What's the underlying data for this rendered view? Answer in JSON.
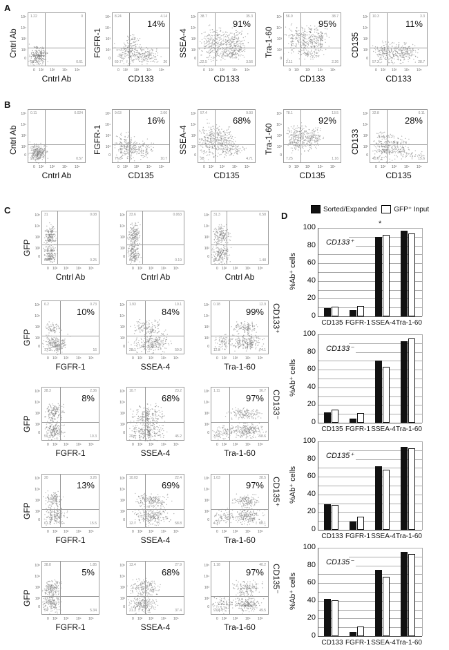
{
  "panels": {
    "A": "A",
    "B": "B",
    "C": "C",
    "D": "D"
  },
  "facs_axis_ticks": {
    "x": [
      "0",
      "10²",
      "10³",
      "10⁴",
      "10⁵"
    ],
    "y": [
      "10⁵",
      "10⁴",
      "10³",
      "10²",
      "0"
    ]
  },
  "panelA": [
    {
      "ylabel": "Cntrl Ab",
      "xlabel": "Cntrl Ab",
      "pct": "",
      "ul": "1.22",
      "ur": "0",
      "ll": "98.2",
      "lr": "0.61"
    },
    {
      "ylabel": "FGFR-1",
      "xlabel": "CD133",
      "pct": "14%",
      "ul": "8.24",
      "ur": "4.14",
      "ll": "60.7",
      "lr": "26"
    },
    {
      "ylabel": "SSEA-4",
      "xlabel": "CD133",
      "pct": "91%",
      "ul": "38.7",
      "ur": "35.3",
      "ll": "22.5",
      "lr": "3.56"
    },
    {
      "ylabel": "Tra-1-60",
      "xlabel": "CD133",
      "pct": "95%",
      "ul": "56.9",
      "ur": "38.7",
      "ll": "2.11",
      "lr": "2.26"
    },
    {
      "ylabel": "CD135",
      "xlabel": "CD133",
      "pct": "11%",
      "ul": "10.3",
      "ur": "3.3",
      "ll": "57.2",
      "lr": "28.7"
    }
  ],
  "panelB": [
    {
      "ylabel": "Cntrl Ab",
      "xlabel": "Cntrl Ab",
      "pct": "",
      "ul": "0.11",
      "ur": "0.024",
      "ll": "99.3",
      "lr": "0.57"
    },
    {
      "ylabel": "FGFR-1",
      "xlabel": "CD135",
      "pct": "16%",
      "ul": "9.63",
      "ur": "2.06",
      "ll": "77.6",
      "lr": "10.7"
    },
    {
      "ylabel": "SSEA-4",
      "xlabel": "CD135",
      "pct": "68%",
      "ul": "57.4",
      "ur": "9.93",
      "ll": "28",
      "lr": "4.71"
    },
    {
      "ylabel": "Tra-1-60",
      "xlabel": "CD135",
      "pct": "92%",
      "ul": "78.1",
      "ur": "13.5",
      "ll": "7.25",
      "lr": "1.16"
    },
    {
      "ylabel": "CD133",
      "xlabel": "CD135",
      "pct": "28%",
      "ul": "32.8",
      "ur": "6.11",
      "ll": "45.6",
      "lr": "15.6"
    }
  ],
  "panelC": {
    "ylabel": "GFP",
    "rows": [
      {
        "label": "",
        "plots": [
          {
            "xlabel": "Cntrl Ab",
            "pct": "",
            "ul": "31",
            "ur": "0.08",
            "ll": "68.7",
            "lr": "0.25"
          },
          {
            "xlabel": "Cntrl Ab",
            "pct": "",
            "ul": "33.6",
            "ur": "0.063",
            "ll": "66.1",
            "lr": "0.19"
          },
          {
            "xlabel": "Cntrl Ab",
            "pct": "",
            "ul": "31.3",
            "ur": "0.58",
            "ll": "66.6",
            "lr": "1.48"
          }
        ]
      },
      {
        "label": "CD133⁺",
        "plots": [
          {
            "xlabel": "FGFR-1",
            "pct": "10%",
            "ul": "6.2",
            "ur": "0.73",
            "ll": "77.1",
            "lr": "16"
          },
          {
            "xlabel": "SSEA-4",
            "pct": "84%",
            "ul": "1.93",
            "ur": "10.1",
            "ll": "28.1",
            "lr": "59.9"
          },
          {
            "xlabel": "Tra-1-60",
            "pct": "99%",
            "ul": "0.18",
            "ur": "12.9",
            "ll": "12.8",
            "lr": "74.1"
          }
        ]
      },
      {
        "label": "CD133⁻",
        "plots": [
          {
            "xlabel": "FGFR-1",
            "pct": "8%",
            "ul": "28.3",
            "ur": "2.36",
            "ll": "59",
            "lr": "10.3"
          },
          {
            "xlabel": "SSEA-4",
            "pct": "68%",
            "ul": "10.7",
            "ur": "23.2",
            "ll": "20",
            "lr": "45.2"
          },
          {
            "xlabel": "Tra-1-60",
            "pct": "97%",
            "ul": "1.11",
            "ur": "36.7",
            "ll": "3.54",
            "lr": "58.6"
          }
        ]
      },
      {
        "label": "CD135⁺",
        "plots": [
          {
            "xlabel": "FGFR-1",
            "pct": "13%",
            "ul": "20",
            "ur": "3.26",
            "ll": "61.2",
            "lr": "15.5"
          },
          {
            "xlabel": "SSEA-4",
            "pct": "69%",
            "ul": "10.03",
            "ur": "22.4",
            "ll": "12.7",
            "lr": "58.8"
          },
          {
            "xlabel": "Tra-1-60",
            "pct": "97%",
            "ul": "1.03",
            "ur": "28.5",
            "ll": "4.37",
            "lr": "66.1"
          }
        ]
      },
      {
        "label": "CD135⁻",
        "plots": [
          {
            "xlabel": "FGFR-1",
            "pct": "5%",
            "ul": "38.8",
            "ur": "1.85",
            "ll": "54",
            "lr": "5.34"
          },
          {
            "xlabel": "SSEA-4",
            "pct": "68%",
            "ul": "13.4",
            "ur": "27.9",
            "ll": "21.3",
            "lr": "37.4"
          },
          {
            "xlabel": "Tra-1-60",
            "pct": "97%",
            "ul": "1.18",
            "ur": "40.2",
            "ll": "9.04",
            "lr": "49.5"
          }
        ]
      }
    ]
  },
  "legend": {
    "series1": "Sorted/Expanded",
    "series2": "GFP⁺ Input"
  },
  "chart_data": [
    {
      "type": "bar",
      "title": "CD133⁺",
      "categories": [
        "CD135",
        "FGFR-1",
        "SSEA-4",
        "Tra-1-60"
      ],
      "series": [
        {
          "name": "Sorted/Expanded",
          "values": [
            9,
            7,
            90,
            97
          ]
        },
        {
          "name": "GFP⁺ Input",
          "values": [
            11,
            12,
            92,
            94
          ]
        }
      ],
      "ylabel": "%Ab⁺ cells",
      "ylim": [
        0,
        100
      ],
      "yticks": [
        "0",
        "20",
        "40",
        "60",
        "80",
        "100"
      ],
      "annotation": "*"
    },
    {
      "type": "bar",
      "title": "CD133⁻",
      "categories": [
        "CD135",
        "FGFR-1",
        "SSEA-4",
        "Tra-1-60"
      ],
      "series": [
        {
          "name": "Sorted/Expanded",
          "values": [
            12,
            5,
            70,
            92
          ]
        },
        {
          "name": "GFP⁺ Input",
          "values": [
            15,
            11,
            63,
            95
          ]
        }
      ],
      "ylabel": "%Ab⁺ cells",
      "ylim": [
        0,
        100
      ],
      "yticks": [
        "0",
        "20",
        "40",
        "60",
        "80",
        "100"
      ]
    },
    {
      "type": "bar",
      "title": "CD135⁺",
      "categories": [
        "CD133",
        "FGFR-1",
        "SSEA-4",
        "Tra-1-60"
      ],
      "series": [
        {
          "name": "Sorted/Expanded",
          "values": [
            29,
            9,
            72,
            94
          ]
        },
        {
          "name": "GFP⁺ Input",
          "values": [
            28,
            15,
            68,
            92
          ]
        }
      ],
      "ylabel": "%Ab⁺ cells",
      "ylim": [
        0,
        100
      ],
      "yticks": [
        "0",
        "20",
        "40",
        "60",
        "80",
        "100"
      ]
    },
    {
      "type": "bar",
      "title": "CD135⁻",
      "categories": [
        "CD133",
        "FGFR-1",
        "SSEA-4",
        "Tra-1-60"
      ],
      "series": [
        {
          "name": "Sorted/Expanded",
          "values": [
            42,
            5,
            75,
            95
          ]
        },
        {
          "name": "GFP⁺ Input",
          "values": [
            41,
            11,
            67,
            93
          ]
        }
      ],
      "ylabel": "%Ab⁺ cells",
      "ylim": [
        0,
        100
      ],
      "yticks": [
        "0",
        "20",
        "40",
        "60",
        "80",
        "100"
      ]
    }
  ]
}
